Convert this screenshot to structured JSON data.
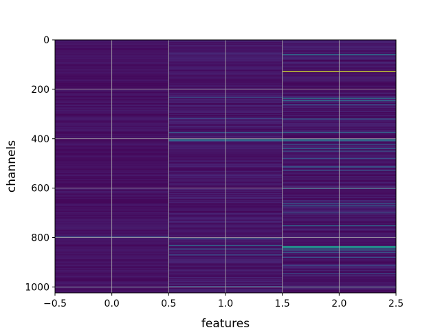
{
  "chart_data": {
    "type": "heatmap",
    "xlabel": "features",
    "ylabel": "channels",
    "x_ticks": [
      "−0.5",
      "0.0",
      "0.5",
      "1.0",
      "1.5",
      "2.0",
      "2.5"
    ],
    "y_ticks": [
      "0",
      "200",
      "400",
      "600",
      "800",
      "1000"
    ],
    "x_tick_values": [
      -0.5,
      0.0,
      0.5,
      1.0,
      1.5,
      2.0,
      2.5
    ],
    "y_tick_values": [
      0,
      200,
      400,
      600,
      800,
      1000
    ],
    "xlim": [
      -0.5,
      2.5
    ],
    "ylim": [
      1024,
      0
    ],
    "grid": true,
    "colormap": "viridis",
    "columns": [
      0,
      1,
      2
    ],
    "n_rows": 1024,
    "bright_rows": [
      {
        "column": 1,
        "rows": [
          232,
          318,
          374,
          404,
          408,
          804,
          832,
          846,
          870,
          998
        ]
      },
      {
        "column": 2,
        "rows": [
          60,
          128,
          236,
          246,
          262,
          320,
          374,
          402,
          408,
          422,
          440,
          450,
          480,
          514,
          528,
          600,
          662,
          672,
          700,
          752,
          836,
          838,
          842,
          850,
          860,
          880,
          912,
          946,
          1000
        ]
      },
      {
        "column": 0,
        "rows": [
          796,
          1000
        ]
      }
    ],
    "bright_values": {
      "1": [
        0.3,
        0.25,
        0.35,
        0.55,
        0.4,
        0.35,
        0.45,
        0.3,
        0.3,
        0.3
      ],
      "2": [
        0.45,
        0.95,
        0.5,
        0.45,
        0.3,
        0.35,
        0.4,
        0.55,
        0.45,
        0.35,
        0.4,
        0.35,
        0.3,
        0.4,
        0.3,
        0.5,
        0.35,
        0.4,
        0.3,
        0.45,
        0.65,
        0.6,
        0.6,
        0.55,
        0.35,
        0.3,
        0.3,
        0.3,
        0.35
      ],
      "0": [
        0.3,
        0.25
      ]
    }
  }
}
